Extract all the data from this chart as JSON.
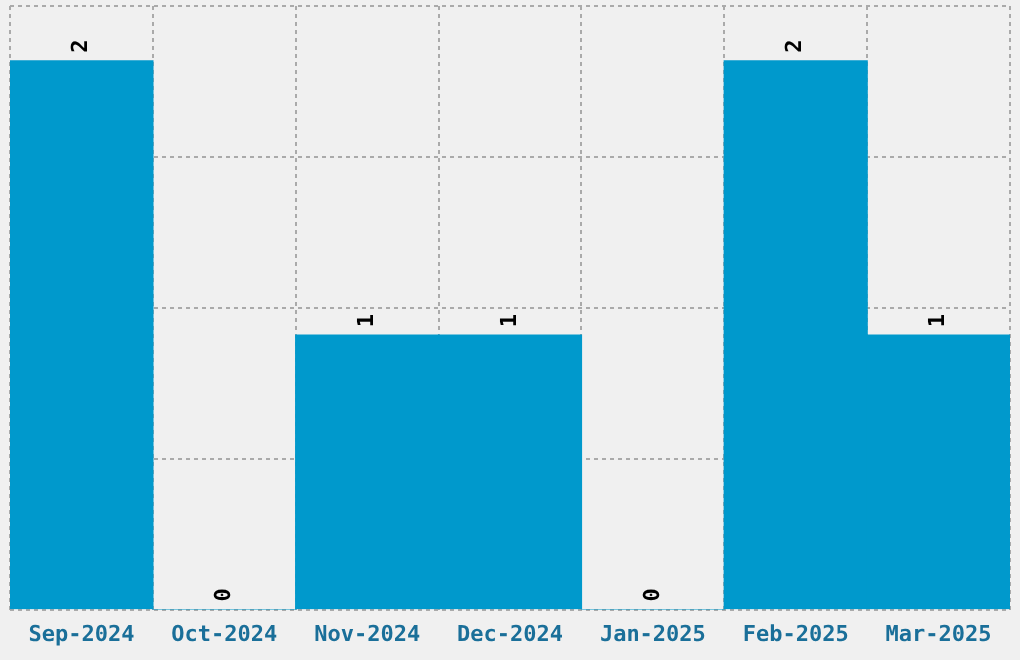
{
  "chart_data": {
    "type": "bar",
    "categories": [
      "Sep-2024",
      "Oct-2024",
      "Nov-2024",
      "Dec-2024",
      "Jan-2025",
      "Feb-2025",
      "Mar-2025"
    ],
    "values": [
      2,
      0,
      1,
      1,
      0,
      2,
      1
    ],
    "color": "#0099cc",
    "ylim": [
      0,
      2.2
    ],
    "yticks": [
      {
        "value": 0,
        "label": null
      },
      {
        "value": 0.55,
        "label": null
      },
      {
        "value": 1.1,
        "label": null
      },
      {
        "value": 1.65,
        "label": null
      },
      {
        "value": 2.2,
        "label": null
      }
    ],
    "tick_labels": "x",
    "grid": true,
    "data_labels": true
  }
}
